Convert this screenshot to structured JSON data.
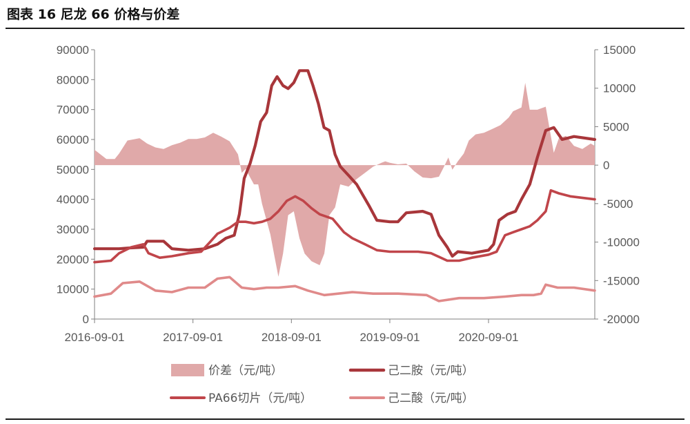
{
  "title": "图表 16 尼龙 66 价格与价差",
  "chart_data": {
    "type": "line",
    "x_ticks": [
      "2016-09-01",
      "2017-09-01",
      "2018-09-01",
      "2019-09-01",
      "2020-09-01"
    ],
    "x_range": [
      "2016-09-01",
      "2021-09-30"
    ],
    "y_left": {
      "range": [
        0,
        90000
      ],
      "ticks": [
        0,
        10000,
        20000,
        30000,
        40000,
        50000,
        60000,
        70000,
        80000,
        90000
      ]
    },
    "y_right": {
      "range": [
        -20000,
        15000
      ],
      "ticks": [
        -20000,
        -15000,
        -10000,
        -5000,
        0,
        5000,
        10000,
        15000
      ]
    },
    "legend_placement": "bottom",
    "colors": {
      "spread": "#e0a9a9",
      "adipo": "#a8363a",
      "pa66": "#c0454a",
      "adipic": "#e08a8a"
    },
    "series": [
      {
        "name": "价差（元/吨）",
        "type": "area",
        "axis": "right",
        "color": "#e0a9a9",
        "points": [
          [
            "2016-09-01",
            2000
          ],
          [
            "2016-10-15",
            800
          ],
          [
            "2016-11-15",
            800
          ],
          [
            "2016-12-01",
            1500
          ],
          [
            "2017-01-01",
            3200
          ],
          [
            "2017-02-15",
            3500
          ],
          [
            "2017-03-15",
            2800
          ],
          [
            "2017-04-15",
            2300
          ],
          [
            "2017-05-15",
            2100
          ],
          [
            "2017-06-15",
            2600
          ],
          [
            "2017-07-15",
            2900
          ],
          [
            "2017-08-15",
            3400
          ],
          [
            "2017-09-15",
            3400
          ],
          [
            "2017-10-15",
            3600
          ],
          [
            "2017-11-15",
            4200
          ],
          [
            "2017-12-15",
            3700
          ],
          [
            "2018-01-15",
            3100
          ],
          [
            "2018-02-15",
            1400
          ],
          [
            "2018-03-01",
            -1000
          ],
          [
            "2018-03-15",
            -500
          ],
          [
            "2018-04-15",
            -2500
          ],
          [
            "2018-05-01",
            -2500
          ],
          [
            "2018-05-15",
            -5000
          ],
          [
            "2018-06-15",
            -9000
          ],
          [
            "2018-07-01",
            -12000
          ],
          [
            "2018-07-15",
            -14500
          ],
          [
            "2018-08-01",
            -11500
          ],
          [
            "2018-08-20",
            -6500
          ],
          [
            "2018-09-10",
            -6000
          ],
          [
            "2018-10-01",
            -9500
          ],
          [
            "2018-10-20",
            -11500
          ],
          [
            "2018-11-15",
            -12500
          ],
          [
            "2018-12-15",
            -13000
          ],
          [
            "2019-01-01",
            -11500
          ],
          [
            "2019-01-20",
            -6500
          ],
          [
            "2019-02-10",
            -5500
          ],
          [
            "2019-03-01",
            -2500
          ],
          [
            "2019-04-01",
            -2800
          ],
          [
            "2019-05-01",
            -1800
          ],
          [
            "2019-06-01",
            -1000
          ],
          [
            "2019-07-01",
            -200
          ],
          [
            "2019-08-01",
            300
          ],
          [
            "2019-08-15",
            500
          ],
          [
            "2019-09-01",
            300
          ],
          [
            "2019-10-01",
            100
          ],
          [
            "2019-11-01",
            200
          ],
          [
            "2019-12-01",
            -800
          ],
          [
            "2020-01-01",
            -1600
          ],
          [
            "2020-02-01",
            -1700
          ],
          [
            "2020-03-01",
            -1500
          ],
          [
            "2020-03-20",
            -200
          ],
          [
            "2020-04-05",
            1000
          ],
          [
            "2020-04-20",
            -600
          ],
          [
            "2020-05-10",
            500
          ],
          [
            "2020-06-01",
            1500
          ],
          [
            "2020-06-20",
            3200
          ],
          [
            "2020-07-15",
            4000
          ],
          [
            "2020-08-15",
            4200
          ],
          [
            "2020-09-15",
            4700
          ],
          [
            "2020-10-15",
            5200
          ],
          [
            "2020-11-15",
            6200
          ],
          [
            "2020-12-01",
            7000
          ],
          [
            "2021-01-01",
            7500
          ],
          [
            "2021-01-15",
            10700
          ],
          [
            "2021-02-01",
            7200
          ],
          [
            "2021-03-01",
            7200
          ],
          [
            "2021-04-01",
            7600
          ],
          [
            "2021-05-01",
            1600
          ],
          [
            "2021-05-20",
            3500
          ],
          [
            "2021-06-15",
            3800
          ],
          [
            "2021-07-15",
            2500
          ],
          [
            "2021-08-15",
            2100
          ],
          [
            "2021-09-15",
            2800
          ],
          [
            "2021-09-30",
            2500
          ]
        ]
      },
      {
        "name": "己二胺（元/吨）",
        "type": "line",
        "axis": "left",
        "color": "#a8363a",
        "points": [
          [
            "2016-09-01",
            23500
          ],
          [
            "2016-12-01",
            23500
          ],
          [
            "2017-01-15",
            23800
          ],
          [
            "2017-03-01",
            24000
          ],
          [
            "2017-03-15",
            26000
          ],
          [
            "2017-05-15",
            26000
          ],
          [
            "2017-06-15",
            23500
          ],
          [
            "2017-08-15",
            23000
          ],
          [
            "2017-10-15",
            23500
          ],
          [
            "2017-12-01",
            25000
          ],
          [
            "2018-01-01",
            27000
          ],
          [
            "2018-02-01",
            28000
          ],
          [
            "2018-02-20",
            35000
          ],
          [
            "2018-03-10",
            47000
          ],
          [
            "2018-04-01",
            52000
          ],
          [
            "2018-04-20",
            58000
          ],
          [
            "2018-05-10",
            66000
          ],
          [
            "2018-06-01",
            69000
          ],
          [
            "2018-06-20",
            78000
          ],
          [
            "2018-07-10",
            81000
          ],
          [
            "2018-08-01",
            78000
          ],
          [
            "2018-08-20",
            77000
          ],
          [
            "2018-09-10",
            79000
          ],
          [
            "2018-10-01",
            83000
          ],
          [
            "2018-11-01",
            83000
          ],
          [
            "2018-11-20",
            78000
          ],
          [
            "2018-12-10",
            72000
          ],
          [
            "2018-12-31",
            64000
          ],
          [
            "2019-01-20",
            63000
          ],
          [
            "2019-02-10",
            55000
          ],
          [
            "2019-03-01",
            51000
          ],
          [
            "2019-04-01",
            48000
          ],
          [
            "2019-05-01",
            45000
          ],
          [
            "2019-06-15",
            38000
          ],
          [
            "2019-07-15",
            33000
          ],
          [
            "2019-09-01",
            32500
          ],
          [
            "2019-10-01",
            32500
          ],
          [
            "2019-11-01",
            35500
          ],
          [
            "2020-01-01",
            36000
          ],
          [
            "2020-02-01",
            35000
          ],
          [
            "2020-03-01",
            28000
          ],
          [
            "2020-04-01",
            24000
          ],
          [
            "2020-04-20",
            21000
          ],
          [
            "2020-05-10",
            22500
          ],
          [
            "2020-07-01",
            22000
          ],
          [
            "2020-09-01",
            23000
          ],
          [
            "2020-09-20",
            25000
          ],
          [
            "2020-10-10",
            33000
          ],
          [
            "2020-11-10",
            35000
          ],
          [
            "2020-12-10",
            36000
          ],
          [
            "2021-01-01",
            40000
          ],
          [
            "2021-02-01",
            45000
          ],
          [
            "2021-03-01",
            54000
          ],
          [
            "2021-04-01",
            63000
          ],
          [
            "2021-05-01",
            64000
          ],
          [
            "2021-06-01",
            60000
          ],
          [
            "2021-07-15",
            61000
          ],
          [
            "2021-09-30",
            60000
          ]
        ]
      },
      {
        "name": "PA66切片（元/吨）",
        "type": "line",
        "axis": "left",
        "color": "#c0454a",
        "points": [
          [
            "2016-09-01",
            19000
          ],
          [
            "2016-11-01",
            19500
          ],
          [
            "2016-12-01",
            22000
          ],
          [
            "2017-01-15",
            24000
          ],
          [
            "2017-03-01",
            25000
          ],
          [
            "2017-03-20",
            22000
          ],
          [
            "2017-05-01",
            20500
          ],
          [
            "2017-06-15",
            21000
          ],
          [
            "2017-08-15",
            22000
          ],
          [
            "2017-10-01",
            22500
          ],
          [
            "2017-11-01",
            25500
          ],
          [
            "2017-12-01",
            28500
          ],
          [
            "2018-01-15",
            30500
          ],
          [
            "2018-02-15",
            32500
          ],
          [
            "2018-03-15",
            32500
          ],
          [
            "2018-04-15",
            32000
          ],
          [
            "2018-05-15",
            32500
          ],
          [
            "2018-06-15",
            33500
          ],
          [
            "2018-07-15",
            36000
          ],
          [
            "2018-08-15",
            39500
          ],
          [
            "2018-09-15",
            41000
          ],
          [
            "2018-10-15",
            39500
          ],
          [
            "2018-11-15",
            37000
          ],
          [
            "2018-12-15",
            35000
          ],
          [
            "2019-02-01",
            33500
          ],
          [
            "2019-03-15",
            29000
          ],
          [
            "2019-04-15",
            27000
          ],
          [
            "2019-06-01",
            25000
          ],
          [
            "2019-07-15",
            23000
          ],
          [
            "2019-09-01",
            22500
          ],
          [
            "2019-10-15",
            22500
          ],
          [
            "2019-12-15",
            22500
          ],
          [
            "2020-02-01",
            22000
          ],
          [
            "2020-04-01",
            19500
          ],
          [
            "2020-05-15",
            19500
          ],
          [
            "2020-07-01",
            20500
          ],
          [
            "2020-09-01",
            21500
          ],
          [
            "2020-10-01",
            22500
          ],
          [
            "2020-11-01",
            28000
          ],
          [
            "2020-12-01",
            29000
          ],
          [
            "2021-01-01",
            30000
          ],
          [
            "2021-02-01",
            31000
          ],
          [
            "2021-03-01",
            33000
          ],
          [
            "2021-04-01",
            36000
          ],
          [
            "2021-04-20",
            43000
          ],
          [
            "2021-05-20",
            42000
          ],
          [
            "2021-07-01",
            41000
          ],
          [
            "2021-09-30",
            40000
          ]
        ]
      },
      {
        "name": "己二酸（元/吨）",
        "type": "line",
        "axis": "left",
        "color": "#e08a8a",
        "points": [
          [
            "2016-09-01",
            7500
          ],
          [
            "2016-11-01",
            8500
          ],
          [
            "2016-12-15",
            12000
          ],
          [
            "2017-02-15",
            12500
          ],
          [
            "2017-04-15",
            9500
          ],
          [
            "2017-06-15",
            9000
          ],
          [
            "2017-08-15",
            10500
          ],
          [
            "2017-10-15",
            10500
          ],
          [
            "2017-12-01",
            13500
          ],
          [
            "2018-01-15",
            14000
          ],
          [
            "2018-03-01",
            10500
          ],
          [
            "2018-04-15",
            10000
          ],
          [
            "2018-06-01",
            10500
          ],
          [
            "2018-07-15",
            10500
          ],
          [
            "2018-09-15",
            11000
          ],
          [
            "2018-11-01",
            9500
          ],
          [
            "2019-01-01",
            8000
          ],
          [
            "2019-04-15",
            9000
          ],
          [
            "2019-07-01",
            8500
          ],
          [
            "2019-10-01",
            8500
          ],
          [
            "2020-01-15",
            8000
          ],
          [
            "2020-03-01",
            6000
          ],
          [
            "2020-05-15",
            7000
          ],
          [
            "2020-08-15",
            7000
          ],
          [
            "2020-11-01",
            7500
          ],
          [
            "2021-01-01",
            8000
          ],
          [
            "2021-02-15",
            8000
          ],
          [
            "2021-03-15",
            8500
          ],
          [
            "2021-04-01",
            11500
          ],
          [
            "2021-05-15",
            10500
          ],
          [
            "2021-07-15",
            10500
          ],
          [
            "2021-09-30",
            9500
          ]
        ]
      }
    ]
  }
}
